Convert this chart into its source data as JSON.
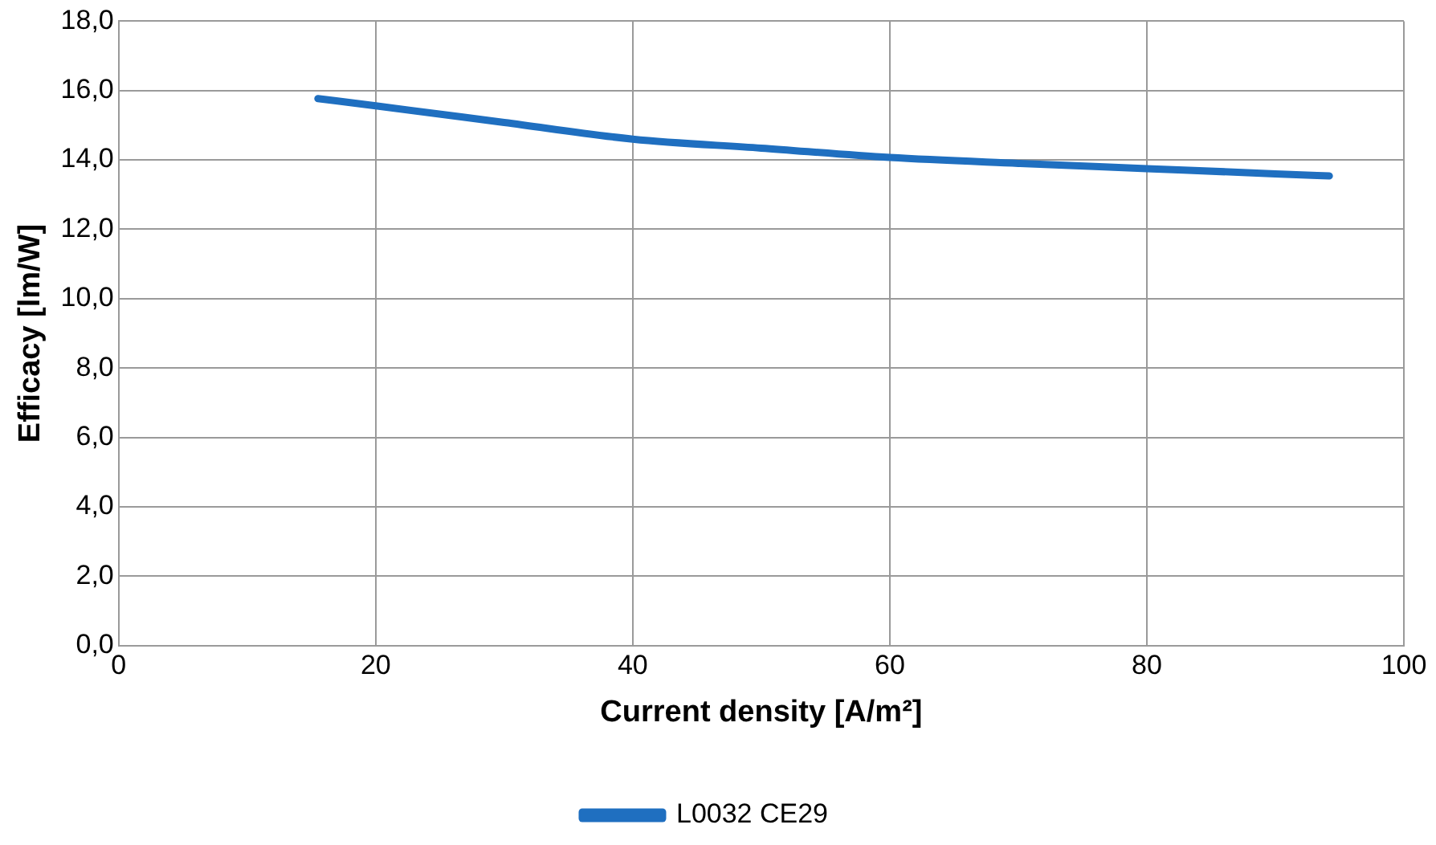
{
  "chart_data": {
    "type": "line",
    "xlabel": "Current density [A/m²]",
    "ylabel": "Efficacy [lm/W]",
    "series": [
      {
        "name": "L0032 CE29",
        "color": "#1f6fc0",
        "x": [
          15.5,
          20,
          30,
          40,
          50,
          60,
          70,
          80,
          90,
          94.2
        ],
        "values": [
          15.77,
          15.56,
          15.08,
          14.6,
          14.34,
          14.07,
          13.9,
          13.75,
          13.6,
          13.54
        ]
      }
    ],
    "xlim": [
      0,
      100
    ],
    "xticks": [
      0,
      20,
      40,
      60,
      80,
      100
    ],
    "ylim": [
      0,
      18
    ],
    "yticks": [
      {
        "value": 0,
        "label": "0,0"
      },
      {
        "value": 2,
        "label": "2,0"
      },
      {
        "value": 4,
        "label": "4,0"
      },
      {
        "value": 6,
        "label": "6,0"
      },
      {
        "value": 8,
        "label": "8,0"
      },
      {
        "value": 10,
        "label": "10,0"
      },
      {
        "value": 12,
        "label": "12,0"
      },
      {
        "value": 14,
        "label": "14,0"
      },
      {
        "value": 16,
        "label": "16,0"
      },
      {
        "value": 18,
        "label": "18,0"
      }
    ],
    "grid": true,
    "legend": "bottom",
    "marker": "none",
    "line_style": "solid"
  }
}
